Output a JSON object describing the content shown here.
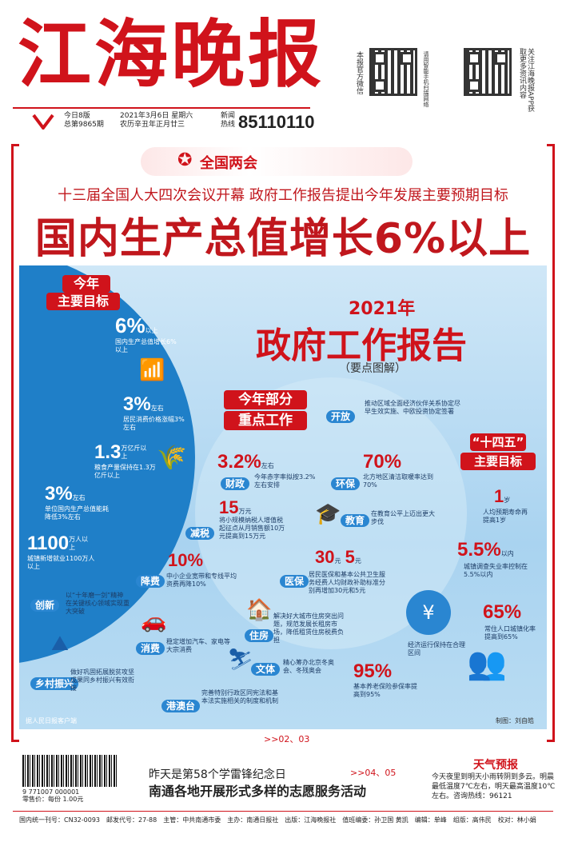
{
  "masthead": {
    "title": "江海晚报",
    "qr1_label": "本报官方微信",
    "qr1_note": "请用智能手机扫描网络",
    "qr2_label": "关注江海晚报APP获取更多资讯内容",
    "pages": "今日8版",
    "issue": "总第9865期",
    "date": "2021年3月6日 星期六",
    "lunar": "农历辛丑年正月廿三",
    "hotline_label": "新闻热线",
    "hotline": "85110110"
  },
  "banner": "全国两会",
  "subhead": "十三届全国人大四次会议开幕 政府工作报告提出今年发展主要预期目标",
  "headline": "国内生产总值增长6%以上",
  "infographic": {
    "year": "2021年",
    "title": "政府工作报告",
    "subtitle": "（要点图解）",
    "goals_title_1": "今年",
    "goals_title_2": "主要目标",
    "goals": [
      {
        "value": "6%",
        "unit": "以上",
        "desc": "国内生产总值增长6%以上"
      },
      {
        "value": "3%",
        "unit": "左右",
        "desc": "居民消费价格涨幅3%左右"
      },
      {
        "value": "1.3",
        "unit": "万亿斤以上",
        "desc": "粮食产量保持在1.3万亿斤以上"
      },
      {
        "value": "3%",
        "unit": "左右",
        "desc": "单位国内生产总值能耗降低3%左右"
      },
      {
        "value": "1100",
        "unit": "万人以上",
        "desc": "城镇新增就业1100万人以上"
      }
    ],
    "work_title_1": "今年部分",
    "work_title_2": "重点工作",
    "work": [
      {
        "tag": "开放",
        "desc": "推动区域全面经济伙伴关系协定尽早生效实施、中欧投资协定签署"
      },
      {
        "tag": "财政",
        "value": "3.2%",
        "unit": "左右",
        "desc": "今年赤字率拟按3.2%左右安排"
      },
      {
        "tag": "环保",
        "value": "70%",
        "desc": "北方地区清洁取暖率达到70%"
      },
      {
        "tag": "减税",
        "value": "15",
        "unit": "万元",
        "desc": "将小规模纳税人增值税起征点从月销售额10万元提高到15万元"
      },
      {
        "tag": "教育",
        "desc": "在教育公平上迈出更大步伐"
      },
      {
        "tag": "降费",
        "value": "10%",
        "desc": "中小企业宽带和专线平均资费再降10%"
      },
      {
        "tag": "医保",
        "value": "30",
        "unit": "元",
        "value2": "5",
        "unit2": "元",
        "desc": "居民医保和基本公共卫生服务经费人均财政补助标准分别再增加30元和5元"
      },
      {
        "tag": "创新",
        "desc": "以“十年磨一剑”精神在关键核心领域实现重大突破"
      },
      {
        "tag": "消费",
        "desc": "稳定增加汽车、家电等大宗消费"
      },
      {
        "tag": "住房",
        "desc": "解决好大城市住房突出问题，规范发展长租房市场，降低租赁住房税费负担"
      },
      {
        "tag": "乡村振兴",
        "desc": "做好巩固拓展脱贫攻坚成果同乡村振兴有效衔接"
      },
      {
        "tag": "文体",
        "desc": "精心筹办北京冬奥会、冬残奥会"
      },
      {
        "tag": "港澳台",
        "desc": "完善特别行政区同宪法和基本法实施相关的制度和机制"
      }
    ],
    "plan_title_1": "“十四五”",
    "plan_title_2": "主要目标",
    "plan": [
      {
        "value": "1",
        "unit": "岁",
        "desc": "人均预期寿命再提高1岁"
      },
      {
        "value": "5.5%",
        "unit": "以内",
        "desc": "城镇调查失业率控制在5.5%以内"
      },
      {
        "value": "65%",
        "desc": "常住人口城镇化率提高到65%"
      },
      {
        "desc": "经济运行保持在合理区间"
      },
      {
        "value": "95%",
        "desc": "基本养老保险参保率提高到95%"
      }
    ],
    "source": "据人民日报客户端",
    "credit": "制图：刘自皓"
  },
  "next_ref": ">>02、03",
  "teaser": {
    "line1": "昨天是第58个学雷锋纪念日",
    "line2": "南通各地开展形式多样的志愿服务活动",
    "ref": ">>04、05"
  },
  "barcode_number": "9 771007 000001",
  "price": "零售价：每份 1.00元",
  "weather": {
    "title": "天气预报",
    "text": "今天夜里到明天小雨转阴到多云。明晨最低温度7℃左右，明天最高温度10℃左右。咨询热线：96121"
  },
  "footer": "国内统一刊号：CN32-0093　邮发代号：27-88　主管：中共南通市委　主办：南通日报社　出版：江海晚报社　值班编委：孙卫国 黄凯　编辑：单峰　组版：高伟民　校对：林小娟"
}
